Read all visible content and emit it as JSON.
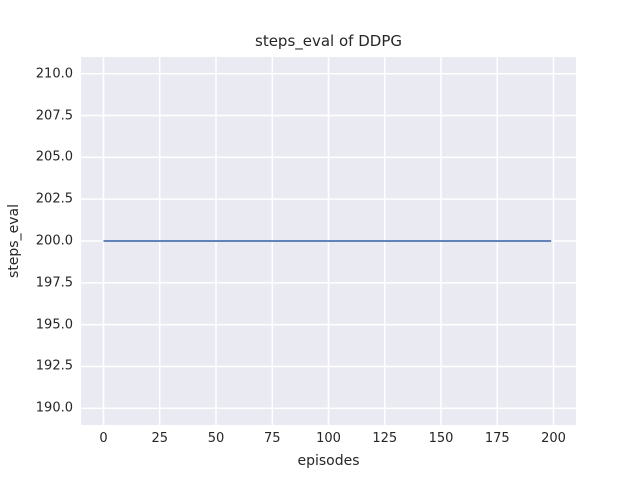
{
  "chart_data": {
    "type": "line",
    "title": "steps_eval of DDPG",
    "xlabel": "episodes",
    "ylabel": "steps_eval",
    "xlim": [
      -10,
      210
    ],
    "ylim": [
      189,
      211
    ],
    "xticks": [
      0,
      25,
      50,
      75,
      100,
      125,
      150,
      175,
      200
    ],
    "xtick_labels": [
      "0",
      "25",
      "50",
      "75",
      "100",
      "125",
      "150",
      "175",
      "200"
    ],
    "yticks": [
      190.0,
      192.5,
      195.0,
      197.5,
      200.0,
      202.5,
      205.0,
      207.5,
      210.0
    ],
    "ytick_labels": [
      "190.0",
      "192.5",
      "195.0",
      "197.5",
      "200.0",
      "202.5",
      "205.0",
      "207.5",
      "210.0"
    ],
    "grid": true,
    "legend": false,
    "series": [
      {
        "name": "steps_eval",
        "x": [
          0,
          199
        ],
        "y": [
          200,
          200
        ],
        "color": "#4C72B0",
        "note": "constant value 200 across all episodes 0-199"
      }
    ],
    "colors": {
      "plot_background": "#EAEAF2",
      "gridline": "#FFFFFF",
      "text": "#262626",
      "figure_background": "#FFFFFF"
    }
  }
}
